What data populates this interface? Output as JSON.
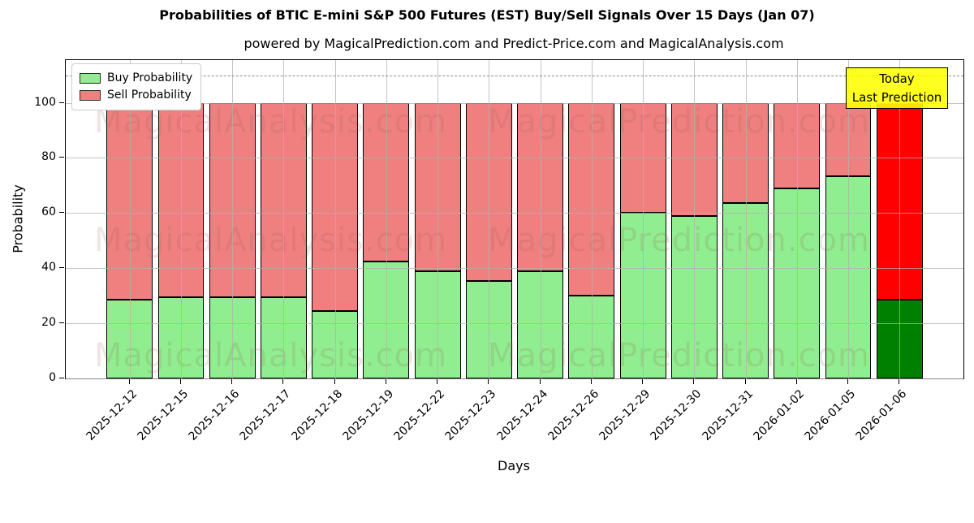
{
  "title": "Probabilities of BTIC E-mini S&P 500 Futures (EST) Buy/Sell Signals Over 15 Days (Jan 07)",
  "subtitle": "powered by MagicalPrediction.com and Predict-Price.com and MagicalAnalysis.com",
  "legend": {
    "buy_label": "Buy Probability",
    "sell_label": "Sell Probability"
  },
  "annotation": {
    "line1": "Today",
    "line2": "Last Prediction",
    "background": "#ffff00"
  },
  "watermarks": [
    "MagicalAnalysis.com",
    "MagicalPrediction.com"
  ],
  "colors": {
    "buy": "#90ee90",
    "sell": "#f08080",
    "today_buy": "#008000",
    "today_sell": "#ff0000",
    "bar_edge": "#000000",
    "grid": "#b0b0b0",
    "dashed_line": "#8c8c8c",
    "annotation_bg": "#ffff00"
  },
  "chart_data": {
    "type": "bar",
    "stacked": true,
    "title": "Probabilities of BTIC E-mini S&P 500 Futures (EST) Buy/Sell Signals Over 15 Days (Jan 07)",
    "xlabel": "Days",
    "ylabel": "Probability",
    "categories": [
      "2025-12-12",
      "2025-12-15",
      "2025-12-16",
      "2025-12-17",
      "2025-12-18",
      "2025-12-19",
      "2025-12-22",
      "2025-12-23",
      "2025-12-24",
      "2025-12-26",
      "2025-12-29",
      "2025-12-30",
      "2025-12-31",
      "2026-01-02",
      "2026-01-05",
      "2026-01-06"
    ],
    "series": [
      {
        "name": "Buy Probability",
        "values": [
          28.5,
          29.5,
          29.5,
          29.5,
          24.5,
          42.5,
          39,
          35.5,
          39,
          30,
          60,
          59,
          63.5,
          69,
          73.5,
          28.5
        ]
      },
      {
        "name": "Sell Probability",
        "values": [
          71.5,
          70.5,
          70.5,
          70.5,
          75.5,
          57.5,
          61,
          64.5,
          61,
          70,
          40,
          41,
          36.5,
          31,
          26.5,
          71.5
        ]
      }
    ],
    "today_index": 15,
    "yticks": [
      0,
      20,
      40,
      60,
      80,
      100
    ],
    "ylim": [
      0,
      115.5
    ],
    "dashed_line_y": 110,
    "grid": true,
    "legend_position": "upper left",
    "bar_total": 100
  }
}
